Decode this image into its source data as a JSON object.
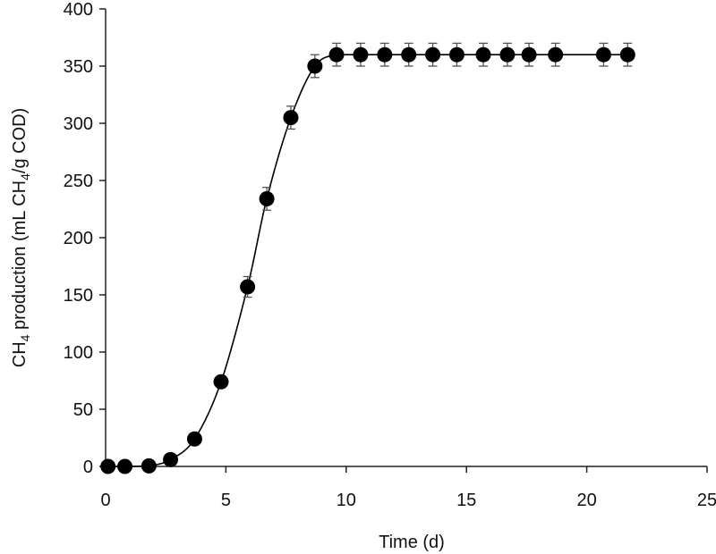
{
  "chart_data": {
    "type": "scatter",
    "title": "",
    "xlabel": "Time (d)",
    "ylabel": {
      "prefix": "CH",
      "sub1": "4",
      "middle": " production (mL CH",
      "sub2": "4",
      "suffix": "/g COD)"
    },
    "xlim": [
      0,
      25
    ],
    "ylim": [
      0,
      400
    ],
    "xticks": [
      0,
      5,
      10,
      15,
      20,
      25
    ],
    "yticks": [
      0,
      50,
      100,
      150,
      200,
      250,
      300,
      350,
      400
    ],
    "grid": false,
    "legend": "none",
    "series": [
      {
        "color": "#000000",
        "marker": "circle",
        "connected": "smooth-line",
        "points": [
          {
            "x": 0.1,
            "y": 0,
            "err": 0
          },
          {
            "x": 0.8,
            "y": 0,
            "err": 0
          },
          {
            "x": 1.8,
            "y": 0.5,
            "err": 1
          },
          {
            "x": 2.7,
            "y": 6,
            "err": 2
          },
          {
            "x": 3.7,
            "y": 24,
            "err": 3
          },
          {
            "x": 4.8,
            "y": 74,
            "err": 5
          },
          {
            "x": 5.9,
            "y": 157,
            "err": 9
          },
          {
            "x": 6.7,
            "y": 234,
            "err": 10
          },
          {
            "x": 7.7,
            "y": 305,
            "err": 10
          },
          {
            "x": 8.7,
            "y": 350,
            "err": 10
          },
          {
            "x": 9.6,
            "y": 360,
            "err": 10
          },
          {
            "x": 10.6,
            "y": 360,
            "err": 10
          },
          {
            "x": 11.6,
            "y": 360,
            "err": 10
          },
          {
            "x": 12.6,
            "y": 360,
            "err": 10
          },
          {
            "x": 13.6,
            "y": 360,
            "err": 10
          },
          {
            "x": 14.6,
            "y": 360,
            "err": 10
          },
          {
            "x": 15.7,
            "y": 360,
            "err": 10
          },
          {
            "x": 16.7,
            "y": 360,
            "err": 10
          },
          {
            "x": 17.6,
            "y": 360,
            "err": 10
          },
          {
            "x": 18.7,
            "y": 360,
            "err": 10
          },
          {
            "x": 20.7,
            "y": 360,
            "err": 10
          },
          {
            "x": 21.7,
            "y": 360,
            "err": 10
          }
        ]
      }
    ]
  }
}
